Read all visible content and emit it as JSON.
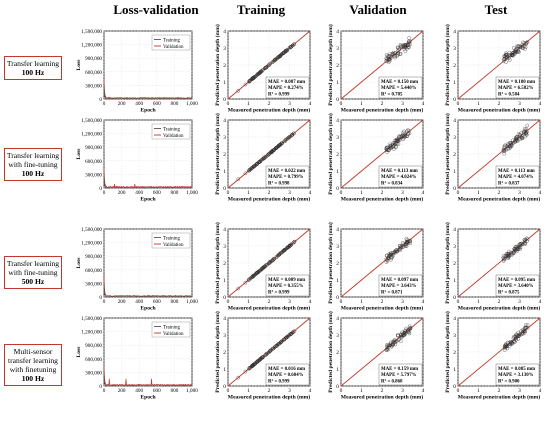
{
  "column_titles": [
    "Loss-validation",
    "Training",
    "Validation",
    "Test"
  ],
  "rows": [
    {
      "label_lines": [
        "Transfer learning",
        "100 Hz"
      ],
      "bold_lines": [
        1
      ]
    },
    {
      "label_lines": [
        "Transfer learning",
        "with fine-tuning",
        "100 Hz"
      ],
      "bold_lines": [
        2
      ]
    },
    {
      "label_lines": [
        "Transfer learning",
        "with fine-tuning",
        "500 Hz"
      ],
      "bold_lines": [
        2
      ]
    },
    {
      "label_lines": [
        "Multi-sensor",
        "transfer learning",
        "with finetuning",
        "100 Hz"
      ],
      "bold_lines": [
        3
      ]
    }
  ],
  "colors": {
    "training": "#555555",
    "validation": "#c0392b",
    "diagonal": "#c0392b",
    "label_border": "#c0392b"
  },
  "chart_data": [
    {
      "type": "line",
      "panel": "loss",
      "xlabel": "Epoch",
      "ylabel": "Loss",
      "xlim": [
        0,
        1000
      ],
      "ylim": [
        0,
        1500000
      ],
      "x_ticks": [
        "0",
        "200",
        "400",
        "600",
        "800",
        "1,000"
      ],
      "y_ticks": [
        "0",
        "300,000",
        "600,000",
        "900,000",
        "1,200,000",
        "1,500,000"
      ],
      "legend": [
        "Training",
        "Validation"
      ],
      "legend_position": "top-right",
      "grid": true
    },
    {
      "type": "scatter",
      "panel": "parity",
      "xlabel": "Measured penetration depth (mm)",
      "ylabel": "Predicted penetration depth (mm)",
      "xlim": [
        0,
        4
      ],
      "ylim": [
        0,
        4
      ],
      "ticks": [
        "0",
        "1",
        "2",
        "3",
        "4"
      ],
      "grid": true,
      "diagonal": true,
      "annotation_position": "bottom-right"
    }
  ],
  "metrics": [
    [
      {
        "mae": "MAE = 0.087 mm",
        "mape": "MAPE = 0.274%",
        "r2": "0.999"
      },
      {
        "mae": "MAE = 0.150 mm",
        "mape": "MAPE = 5.440%",
        "r2": "0.705"
      },
      {
        "mae": "MAE = 0.180 mm",
        "mape": "MAPE = 6.582%",
        "r2": "0.504"
      }
    ],
    [
      {
        "mae": "MAE = 0.022 mm",
        "mape": "MAPE = 0.799%",
        "r2": "0.998"
      },
      {
        "mae": "MAE = 0.113 mm",
        "mape": "MAPE = 4.024%",
        "r2": "0.834"
      },
      {
        "mae": "MAE = 0.113 mm",
        "mape": "MAPE = 4.074%",
        "r2": "0.837"
      }
    ],
    [
      {
        "mae": "MAE = 0.009 mm",
        "mape": "MAPE = 0.355%",
        "r2": "0.999"
      },
      {
        "mae": "MAE = 0.097 mm",
        "mape": "MAPE = 3.643%",
        "r2": "0.871"
      },
      {
        "mae": "MAE = 0.095 mm",
        "mape": "MAPE = 3.640%",
        "r2": "0.875"
      }
    ],
    [
      {
        "mae": "MAE = 0.016 mm",
        "mape": "MAPE = 0.604%",
        "r2": "0.999"
      },
      {
        "mae": "MAE = 0.159 mm",
        "mape": "MAPE = 5.797%",
        "r2": "0.868"
      },
      {
        "mae": "MAE = 0.085 mm",
        "mape": "MAPE = 3.130%",
        "r2": "0.900"
      }
    ]
  ]
}
